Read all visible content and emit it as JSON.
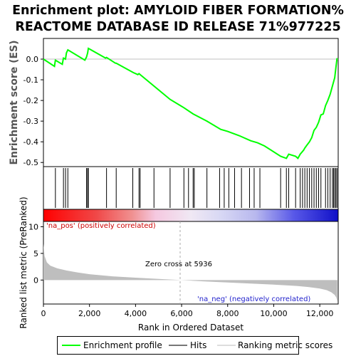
{
  "title_line1": "Enrichment plot: AMYLOID FIBER FORMATION%",
  "title_line2": "REACTOME DATABASE ID RELEASE 71%977225",
  "colors": {
    "es_line": "#00ff00",
    "hits": "#000000",
    "metric_fill": "#bebebe",
    "pos_label": "#cc0000",
    "neg_label": "#2222cc",
    "zero_line": "#c0c0c0"
  },
  "chart_data": [
    {
      "type": "line",
      "name": "enrichment-profile",
      "ylabel": "Enrichment score (ES)",
      "ylim": [
        -0.52,
        0.1
      ],
      "yticks": [
        0.0,
        -0.1,
        -0.2,
        -0.3,
        -0.4,
        -0.5
      ],
      "ytick_labels": [
        "0.0",
        "-0.1",
        "-0.2",
        "-0.3",
        "-0.4",
        "-0.5"
      ],
      "xlim": [
        0,
        12800
      ],
      "series": [
        {
          "name": "Enrichment profile",
          "x": [
            0,
            480,
            520,
            820,
            870,
            960,
            1000,
            1060,
            1800,
            1870,
            1920,
            1950,
            2700,
            2740,
            3130,
            3160,
            3900,
            4100,
            4150,
            4200,
            5500,
            6100,
            6500,
            7100,
            7700,
            8000,
            8500,
            9000,
            9300,
            9600,
            10300,
            10550,
            10650,
            10950,
            11050,
            11150,
            11300,
            11350,
            11450,
            11550,
            11650,
            11750,
            11850,
            11950,
            12050,
            12150,
            12250,
            12350,
            12450,
            12550,
            12650,
            12700,
            12750
          ],
          "y": [
            0.0,
            -0.035,
            -0.005,
            -0.025,
            0.005,
            0.0,
            0.03,
            0.045,
            -0.005,
            0.01,
            0.03,
            0.052,
            0.005,
            0.008,
            -0.02,
            -0.02,
            -0.065,
            -0.075,
            -0.07,
            -0.075,
            -0.195,
            -0.235,
            -0.265,
            -0.3,
            -0.34,
            -0.35,
            -0.37,
            -0.395,
            -0.405,
            -0.42,
            -0.47,
            -0.48,
            -0.46,
            -0.47,
            -0.48,
            -0.46,
            -0.44,
            -0.43,
            -0.415,
            -0.4,
            -0.38,
            -0.345,
            -0.33,
            -0.305,
            -0.27,
            -0.265,
            -0.225,
            -0.2,
            -0.17,
            -0.13,
            -0.09,
            -0.04,
            0.005
          ]
        }
      ]
    },
    {
      "type": "scatter",
      "name": "hits",
      "series": [
        {
          "name": "Hits",
          "x": [
            520,
            870,
            960,
            1060,
            1870,
            1920,
            1950,
            2740,
            3160,
            3880,
            4150,
            4200,
            4800,
            5500,
            6100,
            6300,
            6500,
            6550,
            7100,
            7650,
            7850,
            8050,
            8300,
            8600,
            8950,
            9150,
            9400,
            10300,
            10550,
            10650,
            10950,
            11150,
            11250,
            11350,
            11450,
            11550,
            11650,
            11750,
            11850,
            11950,
            12050,
            12250,
            12350,
            12450,
            12550,
            12600,
            12650,
            12700,
            12750
          ]
        }
      ]
    },
    {
      "type": "area",
      "name": "ranked-list-metric",
      "xlabel": "Rank in Ordered Dataset",
      "ylabel": "Ranked list metric (PreRanked)",
      "ylim": [
        -4.5,
        11
      ],
      "yticks": [
        10,
        5,
        0
      ],
      "xlim": [
        0,
        12800
      ],
      "xticks": [
        0,
        2000,
        4000,
        6000,
        8000,
        10000,
        12000
      ],
      "xtick_labels": [
        "0",
        "2,000",
        "4,000",
        "6,000",
        "8,000",
        "10,000",
        "12,000"
      ],
      "series": [
        {
          "name": "Ranking metric scores",
          "x": [
            0,
            50,
            150,
            300,
            600,
            1000,
            1500,
            2000,
            3000,
            4000,
            5000,
            5936,
            7000,
            8000,
            9000,
            10000,
            11000,
            11500,
            12000,
            12300,
            12500,
            12650,
            12720,
            12760
          ],
          "y": [
            6.8,
            4.5,
            3.3,
            2.7,
            2.2,
            1.8,
            1.4,
            1.1,
            0.7,
            0.45,
            0.2,
            0.0,
            -0.25,
            -0.45,
            -0.65,
            -0.85,
            -1.1,
            -1.3,
            -1.6,
            -1.9,
            -2.3,
            -2.8,
            -3.3,
            -4.0
          ]
        }
      ],
      "annotations": {
        "zero_cross": "Zero cross at 5936",
        "pos_label": "'na_pos' (positively correlated)",
        "neg_label": "'na_neg' (negatively correlated)"
      }
    }
  ],
  "legend": {
    "enrichment_profile": "Enrichment profile",
    "hits": "Hits",
    "ranking_metric_scores": "Ranking metric scores"
  }
}
